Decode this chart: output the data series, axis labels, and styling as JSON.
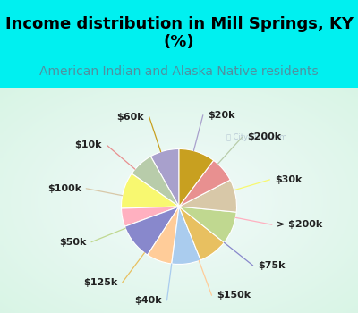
{
  "title": "Income distribution in Mill Springs, KY\n(%)",
  "subtitle": "American Indian and Alaska Native residents",
  "watermark": "ⓘ City-Data.com",
  "labels": [
    "$20k",
    "$200k",
    "$30k",
    "> $200k",
    "$75k",
    "$150k",
    "$40k",
    "$125k",
    "$50k",
    "$100k",
    "$10k",
    "$60k"
  ],
  "values": [
    8,
    7,
    10,
    5,
    10,
    7,
    8,
    8,
    9,
    9,
    7,
    10
  ],
  "colors": [
    "#a8a0cc",
    "#b8ccaa",
    "#f8f870",
    "#ffb0c0",
    "#8888cc",
    "#ffcc99",
    "#aaccee",
    "#e8c060",
    "#c0d890",
    "#d8c8a8",
    "#e89090",
    "#c8a020"
  ],
  "bg_color": "#00f0f0",
  "chart_bg_gradient": true,
  "title_fontsize": 13,
  "subtitle_fontsize": 10,
  "subtitle_color": "#5090a0",
  "label_fontsize": 8,
  "startangle": 90
}
